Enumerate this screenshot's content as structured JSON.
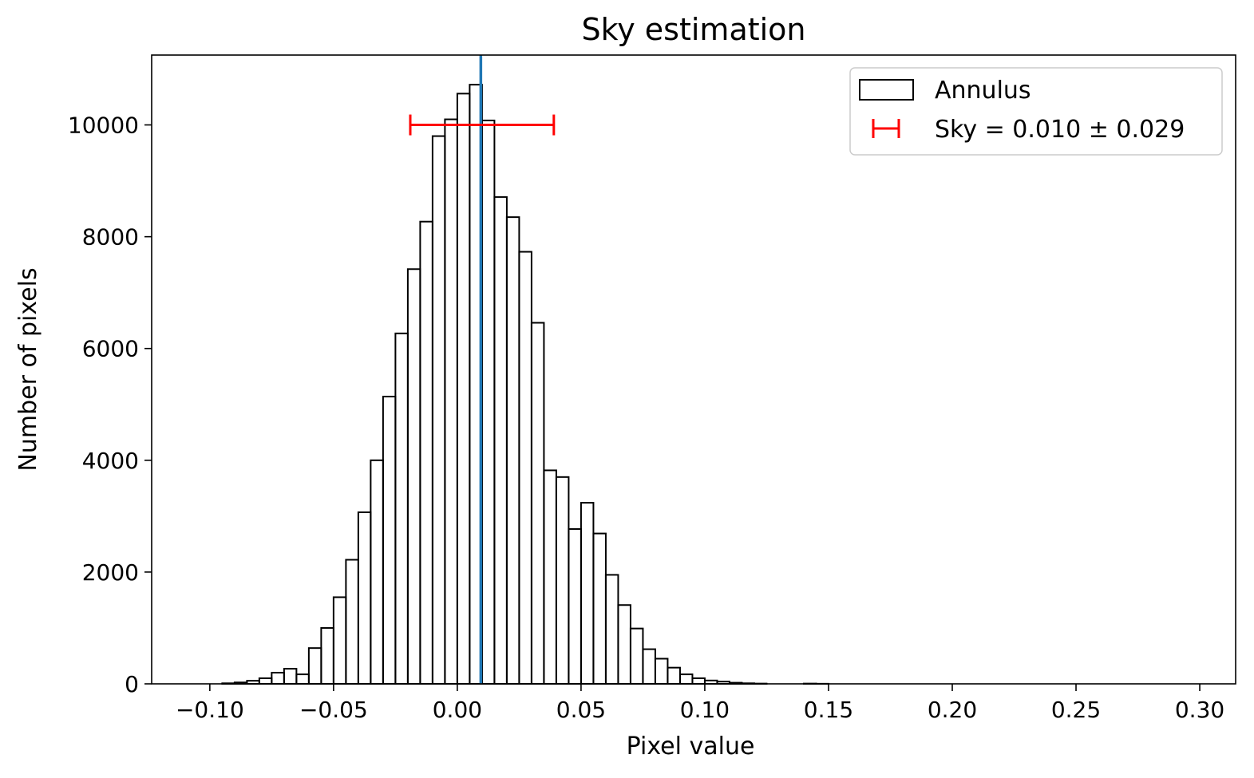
{
  "chart_data": {
    "type": "histogram",
    "title": "Sky estimation",
    "xlabel": "Pixel value",
    "ylabel": "Number of pixels",
    "xlim": [
      -0.1235,
      0.3145
    ],
    "ylim": [
      0,
      11250
    ],
    "xticks": [
      -0.1,
      -0.05,
      0.0,
      0.05,
      0.1,
      0.15,
      0.2,
      0.25,
      0.3
    ],
    "xtick_labels": [
      "−0.10",
      "−0.05",
      "0.00",
      "0.05",
      "0.10",
      "0.15",
      "0.20",
      "0.25",
      "0.30"
    ],
    "yticks": [
      0,
      2000,
      4000,
      6000,
      8000,
      10000
    ],
    "ytick_labels": [
      "0",
      "2000",
      "4000",
      "6000",
      "8000",
      "10000"
    ],
    "histogram": {
      "name": "Annulus",
      "bin_start": -0.095,
      "bin_width": 0.005,
      "counts": [
        10,
        25,
        55,
        100,
        200,
        270,
        170,
        640,
        1000,
        1550,
        2220,
        3070,
        4000,
        5140,
        6270,
        7420,
        8270,
        9800,
        10100,
        10560,
        10720,
        10080,
        8710,
        8350,
        7730,
        6460,
        3820,
        3700,
        2770,
        3240,
        2690,
        1950,
        1410,
        990,
        620,
        450,
        290,
        170,
        100,
        60,
        40,
        20,
        10,
        5,
        0,
        0,
        0,
        5,
        2
      ],
      "edge_color": "#000000"
    },
    "sky": {
      "name": "Sky = 0.010 ± 0.029",
      "value": 0.01,
      "error": 0.029,
      "y": 10000,
      "color": "#ff0000"
    },
    "vline": {
      "x": 0.0095,
      "color": "#1f77b4"
    },
    "legend": {
      "placement": "upper right",
      "entries": [
        "Annulus",
        "Sky = 0.010 ± 0.029"
      ]
    },
    "grid": false
  }
}
